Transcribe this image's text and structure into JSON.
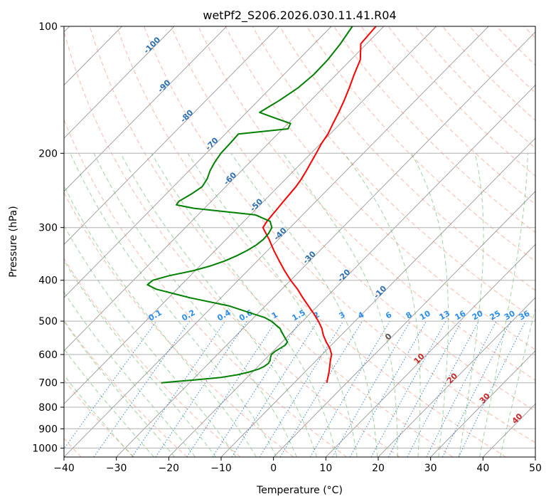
{
  "chart_data": {
    "type": "line",
    "subtype": "skew-t log-p",
    "title": "wetPf2_S206.2026.030.11.41.R04",
    "xlabel": "Temperature (°C)",
    "ylabel": "Pressure (hPa)",
    "xlim": [
      -40,
      50
    ],
    "ylim": [
      1050,
      100
    ],
    "x_ticks": [
      -40,
      -30,
      -20,
      -10,
      0,
      10,
      20,
      30,
      40,
      50
    ],
    "y_ticks": [
      1000,
      900,
      800,
      700,
      600,
      500,
      400,
      300,
      200,
      100
    ],
    "grid": true,
    "series": [
      {
        "name": "Temperature",
        "color": "#ff0000",
        "pressure": [
          700,
          660,
          620,
          600,
          580,
          560,
          540,
          520,
          500,
          480,
          460,
          440,
          420,
          400,
          380,
          360,
          340,
          320,
          300,
          290,
          280,
          270,
          260,
          250,
          240,
          230,
          220,
          210,
          200,
          190,
          180,
          170,
          160,
          150,
          140,
          130,
          120,
          110,
          105,
          100
        ],
        "temperature": [
          -3.8,
          -5.4,
          -7.3,
          -8.2,
          -9.7,
          -11.6,
          -13.4,
          -15.0,
          -17.0,
          -19.3,
          -21.8,
          -24.4,
          -27.0,
          -30.0,
          -32.9,
          -35.8,
          -38.8,
          -41.8,
          -45.2,
          -45.6,
          -45.8,
          -46.0,
          -46.2,
          -46.4,
          -46.6,
          -47.0,
          -47.6,
          -48.3,
          -49.0,
          -49.8,
          -50.4,
          -51.4,
          -52.4,
          -53.6,
          -55.0,
          -56.6,
          -58.2,
          -61.1,
          -61.3,
          -61.5
        ]
      },
      {
        "name": "Dew Point",
        "color": "#008000",
        "pressure": [
          700,
          690,
          680,
          670,
          660,
          650,
          640,
          630,
          620,
          610,
          600,
          590,
          580,
          570,
          560,
          550,
          540,
          530,
          520,
          510,
          500,
          490,
          480,
          460,
          440,
          420,
          410,
          400,
          390,
          380,
          370,
          360,
          350,
          340,
          330,
          320,
          310,
          300,
          290,
          280,
          270,
          265,
          260,
          250,
          240,
          230,
          220,
          210,
          200,
          190,
          185,
          180,
          175,
          170,
          165,
          160,
          150,
          140,
          130,
          120,
          110,
          100
        ],
        "dewpoint": [
          -35.4,
          -30.0,
          -25.0,
          -22.3,
          -20.6,
          -19.4,
          -18.8,
          -18.6,
          -18.8,
          -19.3,
          -19.7,
          -19.6,
          -19.2,
          -18.8,
          -19.0,
          -20.0,
          -21.0,
          -22.0,
          -23.0,
          -24.5,
          -26.0,
          -28.0,
          -31.0,
          -37.0,
          -46.0,
          -54.0,
          -56.5,
          -56.3,
          -54.0,
          -50.5,
          -48.0,
          -46.2,
          -44.9,
          -43.9,
          -43.2,
          -42.9,
          -43.0,
          -43.5,
          -45.0,
          -49.0,
          -62.0,
          -66.0,
          -66.2,
          -65.2,
          -64.5,
          -65.0,
          -66.0,
          -66.7,
          -67.2,
          -67.3,
          -67.4,
          -67.5,
          -59.0,
          -59.5,
          -63.5,
          -67.5,
          -66.0,
          -64.8,
          -64.3,
          -64.4,
          -65.0,
          -66.0
        ]
      }
    ],
    "annotations": {
      "dry_adiabats": [
        "-100",
        "-90",
        "-80",
        "-70",
        "-60",
        "-50",
        "-40",
        "-30",
        "-20",
        "-10"
      ],
      "mixing_ratios": [
        "0.1",
        "0.2",
        "0.4",
        "0.6",
        "1",
        "1.5",
        "2",
        "3",
        "4",
        "6",
        "8",
        "10",
        "13",
        "16",
        "20",
        "25",
        "30",
        "36"
      ],
      "moist_adiabats": [
        "0",
        "10",
        "20",
        "30",
        "40"
      ]
    }
  }
}
